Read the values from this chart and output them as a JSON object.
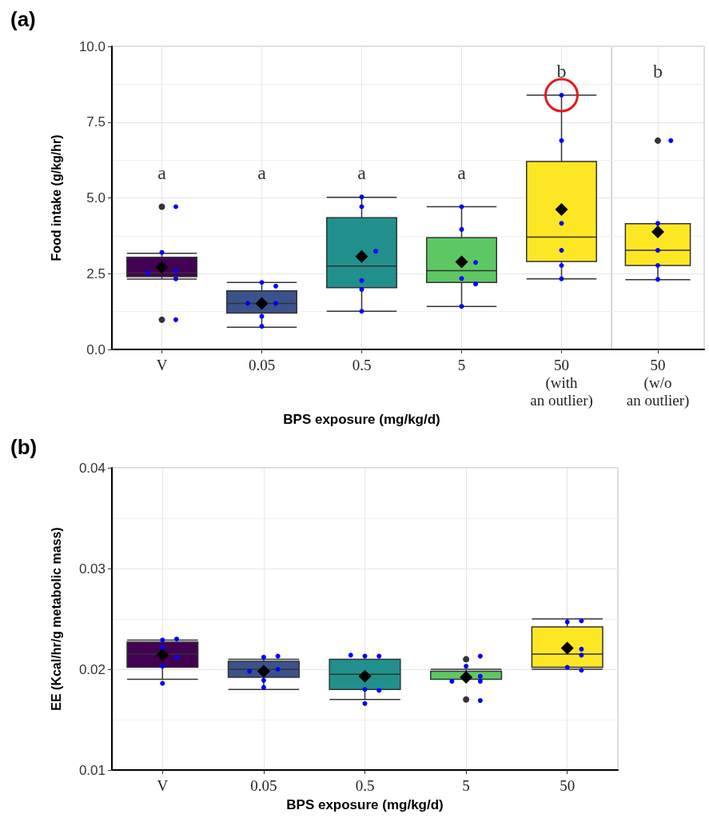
{
  "chart_data": [
    {
      "type": "box",
      "title": "(a)",
      "xlabel": "BPS exposure (mg/kg/d)",
      "ylabel": "Food intake (g/kg/hr)",
      "categories": [
        "V",
        "0.05",
        "0.5",
        "5",
        "50\n(with\nan outlier)"
      ],
      "colors": [
        "#440154",
        "#3b528b",
        "#21908c",
        "#5dc863",
        "#fde725"
      ],
      "boxes": [
        {
          "low": 2.32,
          "q1": 2.4,
          "median": 2.53,
          "q3": 3.04,
          "high": 3.17,
          "mean": 2.72,
          "outliers": [
            4.71,
            0.98
          ]
        },
        {
          "low": 0.73,
          "q1": 1.2,
          "median": 1.52,
          "q3": 1.93,
          "high": 2.21,
          "mean": 1.52
        },
        {
          "low": 1.26,
          "q1": 2.04,
          "median": 2.75,
          "q3": 4.35,
          "high": 5.02,
          "mean": 3.07
        },
        {
          "low": 1.42,
          "q1": 2.21,
          "median": 2.6,
          "q3": 3.69,
          "high": 4.71,
          "mean": 2.89
        },
        {
          "low": 2.33,
          "q1": 2.9,
          "median": 3.71,
          "q3": 6.2,
          "high": 8.39,
          "mean": 4.62
        }
      ],
      "series": [
        {
          "type": "scatter",
          "color": "#0000ff",
          "x": [
            "V",
            "V",
            "V",
            "V",
            "V",
            "V",
            "0.05",
            "0.05",
            "0.05",
            "0.05",
            "0.05",
            "0.05",
            "0.5",
            "0.5",
            "0.5",
            "0.5",
            "0.5",
            "0.5",
            "5",
            "5",
            "5",
            "5",
            "5",
            "5",
            "50\n(with\nan outlier)",
            "50\n(with\nan outlier)",
            "50\n(with\nan outlier)",
            "50\n(with\nan outlier)",
            "50\n(with\nan outlier)",
            "50\n(with\nan outlier)"
          ],
          "values": [
            4.71,
            3.2,
            2.59,
            2.53,
            2.33,
            0.98,
            2.21,
            2.09,
            1.52,
            1.52,
            1.09,
            0.76,
            5.03,
            4.71,
            3.24,
            2.27,
            1.98,
            1.26,
            4.71,
            3.96,
            2.87,
            2.34,
            2.16,
            1.42,
            8.39,
            6.89,
            4.16,
            3.27,
            2.77,
            2.33
          ]
        }
      ],
      "ylim": [
        0,
        10
      ],
      "yticks": [
        {
          "value": 0,
          "label": "0.0"
        },
        {
          "value": 2.5,
          "label": "2.5"
        },
        {
          "value": 5,
          "label": "5.0"
        },
        {
          "value": 7.5,
          "label": "7.5"
        },
        {
          "value": 10,
          "label": "10.0"
        }
      ],
      "grid": true,
      "annotations": [
        "a",
        "a",
        "a",
        "a",
        "b"
      ]
    },
    {
      "type": "box",
      "categories": [
        "50\n(w/o\nan outlier)"
      ],
      "colors": [
        "#fde725"
      ],
      "boxes": [
        {
          "low": 2.3,
          "q1": 2.77,
          "median": 3.27,
          "q3": 4.15,
          "high": 4.15,
          "mean": 3.88,
          "outliers": [
            6.89
          ]
        }
      ],
      "series": [
        {
          "type": "scatter",
          "color": "#0000ff",
          "x": [
            "50\n(w/o\nan outlier)",
            "50\n(w/o\nan outlier)",
            "50\n(w/o\nan outlier)",
            "50\n(w/o\nan outlier)",
            "50\n(w/o\nan outlier)"
          ],
          "values": [
            6.89,
            4.16,
            3.27,
            2.77,
            2.31
          ]
        }
      ],
      "ylim": [
        0,
        10
      ],
      "yticks": [
        0,
        2.5,
        5,
        7.5,
        10
      ],
      "tick_labels": "x",
      "grid": true,
      "annotations": [
        "b"
      ]
    },
    {
      "type": "box",
      "title": "(b)",
      "xlabel": "BPS exposure (mg/kg/d)",
      "ylabel": "EE (Kcal/hr/g metabolic mass)",
      "categories": [
        "V",
        "0.05",
        "0.5",
        "5",
        "50"
      ],
      "colors": [
        "#440154",
        "#3b528b",
        "#21908c",
        "#5dc863",
        "#fde725"
      ],
      "boxes": [
        {
          "low": 0.019,
          "q1": 0.0202,
          "median": 0.0215,
          "q3": 0.0227,
          "high": 0.0229,
          "mean": 0.0214
        },
        {
          "low": 0.018,
          "q1": 0.0192,
          "median": 0.02,
          "q3": 0.0208,
          "high": 0.021,
          "mean": 0.0198
        },
        {
          "low": 0.017,
          "q1": 0.018,
          "median": 0.0195,
          "q3": 0.021,
          "high": 0.021,
          "mean": 0.0193
        },
        {
          "low": 0.019,
          "q1": 0.019,
          "median": 0.019,
          "q3": 0.0198,
          "high": 0.02,
          "mean": 0.0192,
          "outliers": [
            0.021,
            0.017
          ]
        },
        {
          "low": 0.02,
          "q1": 0.0202,
          "median": 0.0215,
          "q3": 0.0242,
          "high": 0.025,
          "mean": 0.0221
        }
      ],
      "series": [
        {
          "type": "scatter",
          "color": "#0000ff",
          "x": [
            "V",
            "V",
            "V",
            "V",
            "V",
            "V",
            "0.05",
            "0.05",
            "0.05",
            "0.05",
            "0.05",
            "0.05",
            "0.5",
            "0.5",
            "0.5",
            "0.5",
            "0.5",
            "0.5",
            "5",
            "5",
            "5",
            "5",
            "5",
            "5",
            "50",
            "50",
            "50",
            "50",
            "50",
            "50"
          ],
          "values": [
            0.0229,
            0.023,
            0.0222,
            0.0212,
            0.0203,
            0.0186,
            0.0212,
            0.0213,
            0.02,
            0.0198,
            0.0189,
            0.0182,
            0.0213,
            0.0213,
            0.0214,
            0.018,
            0.0179,
            0.0166,
            0.0213,
            0.0203,
            0.0193,
            0.0188,
            0.0188,
            0.0169,
            0.0247,
            0.0248,
            0.022,
            0.0214,
            0.0202,
            0.0199
          ]
        }
      ],
      "ylim": [
        0.01,
        0.04
      ],
      "yticks": [
        0.01,
        0.02,
        0.03,
        0.04
      ],
      "grid": true
    }
  ]
}
